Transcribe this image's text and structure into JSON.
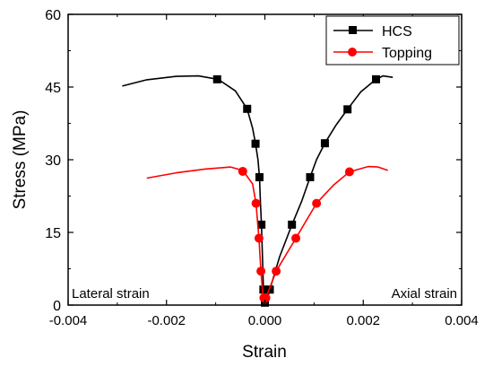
{
  "chart_data": {
    "type": "line",
    "xlabel": "Strain",
    "ylabel": "Stress (MPa)",
    "xlim": [
      -0.004,
      0.004
    ],
    "ylim": [
      0,
      60
    ],
    "x_ticks": [
      -0.004,
      -0.002,
      0.0,
      0.002,
      0.004
    ],
    "x_tick_labels": [
      "-0.004",
      "-0.002",
      "0.000",
      "0.002",
      "0.004"
    ],
    "y_ticks": [
      0,
      15,
      30,
      45,
      60
    ],
    "y_tick_labels": [
      "0",
      "15",
      "30",
      "45",
      "60"
    ],
    "grid": false,
    "legend_position": "top-right",
    "annotations": [
      {
        "text": "Lateral strain",
        "position": "bottom-left"
      },
      {
        "text": "Axial strain",
        "position": "bottom-right"
      }
    ],
    "series": [
      {
        "name": "HCS",
        "color": "#000000",
        "marker": "square",
        "line_points": [
          [
            -0.0029,
            45.2
          ],
          [
            -0.0024,
            46.5
          ],
          [
            -0.0018,
            47.2
          ],
          [
            -0.00135,
            47.3
          ],
          [
            -0.00095,
            46.6
          ],
          [
            -0.0006,
            44.2
          ],
          [
            -0.00036,
            40.5
          ],
          [
            -0.00025,
            36.5
          ],
          [
            -0.00019,
            33.3
          ],
          [
            -0.00014,
            30.0
          ],
          [
            -0.00011,
            26.4
          ],
          [
            -9e-05,
            21.0
          ],
          [
            -7e-05,
            16.6
          ],
          [
            -5e-05,
            10.0
          ],
          [
            -3e-05,
            3.2
          ],
          [
            0.0,
            0.3
          ],
          [
            3e-05,
            0.5
          ],
          [
            0.0001,
            3.2
          ],
          [
            0.0003,
            10.0
          ],
          [
            0.00055,
            16.6
          ],
          [
            0.00075,
            21.5
          ],
          [
            0.00092,
            26.4
          ],
          [
            0.00105,
            30.0
          ],
          [
            0.00122,
            33.4
          ],
          [
            0.00145,
            37.2
          ],
          [
            0.00168,
            40.4
          ],
          [
            0.00195,
            44.0
          ],
          [
            0.00226,
            46.6
          ],
          [
            0.0024,
            47.3
          ],
          [
            0.0026,
            47.0
          ]
        ],
        "markers": [
          [
            -0.00097,
            46.6
          ],
          [
            -0.00036,
            40.5
          ],
          [
            -0.00019,
            33.3
          ],
          [
            -0.00011,
            26.4
          ],
          [
            -7e-05,
            16.6
          ],
          [
            -3e-05,
            3.2
          ],
          [
            0.0,
            0.5
          ],
          [
            0.0001,
            3.2
          ],
          [
            0.00055,
            16.6
          ],
          [
            0.00092,
            26.4
          ],
          [
            0.00122,
            33.4
          ],
          [
            0.00168,
            40.4
          ],
          [
            0.00226,
            46.6
          ]
        ]
      },
      {
        "name": "Topping",
        "color": "#ff0000",
        "marker": "circle",
        "line_points": [
          [
            -0.0024,
            26.2
          ],
          [
            -0.0018,
            27.3
          ],
          [
            -0.0012,
            28.1
          ],
          [
            -0.0007,
            28.5
          ],
          [
            -0.00045,
            27.8
          ],
          [
            -0.00025,
            25.0
          ],
          [
            -0.00018,
            21.0
          ],
          [
            -0.00012,
            13.8
          ],
          [
            -8e-05,
            7.0
          ],
          [
            -4e-05,
            2.0
          ],
          [
            0.0,
            0.0
          ],
          [
            4e-05,
            2.0
          ],
          [
            0.00023,
            7.0
          ],
          [
            0.00063,
            13.8
          ],
          [
            0.00105,
            21.0
          ],
          [
            0.0014,
            24.8
          ],
          [
            0.00172,
            27.5
          ],
          [
            0.0021,
            28.6
          ],
          [
            0.0023,
            28.5
          ],
          [
            0.0025,
            27.8
          ]
        ],
        "markers": [
          [
            -0.00045,
            27.6
          ],
          [
            -0.00018,
            21.0
          ],
          [
            -0.00012,
            13.8
          ],
          [
            -8e-05,
            7.0
          ],
          [
            -2e-05,
            1.5
          ],
          [
            2e-05,
            1.5
          ],
          [
            0.00023,
            7.0
          ],
          [
            0.00063,
            13.8
          ],
          [
            0.00105,
            21.0
          ],
          [
            0.00172,
            27.5
          ]
        ]
      }
    ]
  }
}
